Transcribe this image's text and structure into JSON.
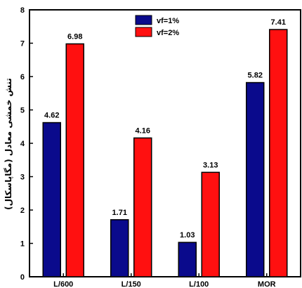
{
  "chart_data": {
    "type": "bar",
    "categories": [
      "L/600",
      "L/150",
      "L/100",
      "MOR"
    ],
    "series": [
      {
        "name": "vf=1%",
        "values": [
          4.62,
          1.71,
          1.03,
          5.82
        ],
        "color": "#0a0a8c"
      },
      {
        "name": "vf=2%",
        "values": [
          6.98,
          4.16,
          3.13,
          7.41
        ],
        "color": "#ff1010"
      }
    ],
    "data_labels": [
      [
        "4.62",
        "1.71",
        "1.03",
        "5.82"
      ],
      [
        "6.98",
        "4.16",
        "3.13",
        "7.41"
      ]
    ],
    "ylabel": "تنش خمشی معادل (مگاپاسکال)",
    "xlabel": "",
    "ylim": [
      0,
      8
    ],
    "yticks": [
      0,
      1,
      2,
      3,
      4,
      5,
      6,
      7,
      8
    ],
    "grid": false,
    "legend_position": "top-center"
  }
}
